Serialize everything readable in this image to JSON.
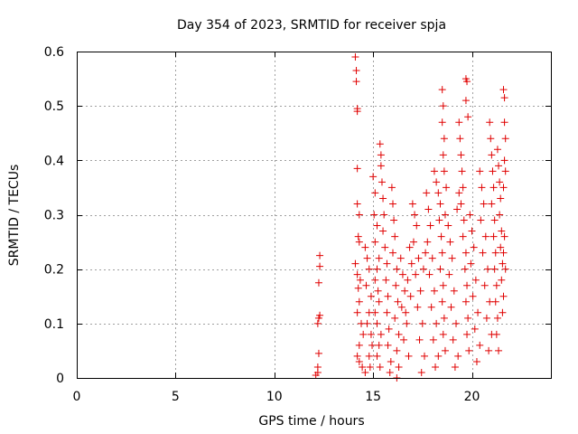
{
  "chart_data": {
    "type": "scatter",
    "title": "Day 354 of 2023, SRMTID for receiver spja",
    "xlabel": "GPS time / hours",
    "ylabel": "SRMTID / TECUs",
    "xlim": [
      0,
      24
    ],
    "ylim": [
      0,
      0.6
    ],
    "xticks": [
      0,
      5,
      10,
      15,
      20
    ],
    "xtick_labels": [
      "0",
      "5",
      "10",
      "15",
      "20"
    ],
    "yticks": [
      0,
      0.1,
      0.2,
      0.3,
      0.4,
      0.5,
      0.6
    ],
    "ytick_labels": [
      "0",
      "0.1",
      "0.2",
      "0.3",
      "0.4",
      "0.5",
      "0.6"
    ],
    "grid": true,
    "marker": "+",
    "marker_color": "#e00000",
    "series": [
      {
        "name": "SRMTID",
        "points": [
          [
            12.1,
            0.005
          ],
          [
            12.2,
            0.01
          ],
          [
            12.2,
            0.02
          ],
          [
            12.25,
            0.045
          ],
          [
            12.2,
            0.1
          ],
          [
            12.25,
            0.11
          ],
          [
            12.3,
            0.115
          ],
          [
            12.25,
            0.175
          ],
          [
            12.3,
            0.205
          ],
          [
            12.3,
            0.225
          ],
          [
            14.1,
            0.59
          ],
          [
            14.15,
            0.565
          ],
          [
            14.15,
            0.545
          ],
          [
            14.2,
            0.495
          ],
          [
            14.2,
            0.49
          ],
          [
            14.2,
            0.385
          ],
          [
            14.2,
            0.32
          ],
          [
            14.3,
            0.3
          ],
          [
            14.25,
            0.26
          ],
          [
            14.3,
            0.25
          ],
          [
            14.1,
            0.21
          ],
          [
            14.2,
            0.19
          ],
          [
            14.35,
            0.18
          ],
          [
            14.25,
            0.165
          ],
          [
            14.3,
            0.14
          ],
          [
            14.2,
            0.12
          ],
          [
            14.4,
            0.1
          ],
          [
            14.5,
            0.08
          ],
          [
            14.3,
            0.06
          ],
          [
            14.2,
            0.04
          ],
          [
            14.3,
            0.03
          ],
          [
            14.45,
            0.02
          ],
          [
            14.6,
            0.01
          ],
          [
            14.6,
            0.24
          ],
          [
            14.7,
            0.22
          ],
          [
            14.8,
            0.2
          ],
          [
            14.65,
            0.17
          ],
          [
            14.9,
            0.15
          ],
          [
            14.8,
            0.12
          ],
          [
            14.7,
            0.1
          ],
          [
            14.9,
            0.08
          ],
          [
            14.95,
            0.06
          ],
          [
            14.8,
            0.04
          ],
          [
            14.85,
            0.02
          ],
          [
            15.0,
            0.37
          ],
          [
            15.1,
            0.34
          ],
          [
            15.05,
            0.3
          ],
          [
            15.2,
            0.28
          ],
          [
            15.1,
            0.25
          ],
          [
            15.3,
            0.22
          ],
          [
            15.2,
            0.2
          ],
          [
            15.1,
            0.18
          ],
          [
            15.25,
            0.16
          ],
          [
            15.3,
            0.14
          ],
          [
            15.1,
            0.12
          ],
          [
            15.2,
            0.1
          ],
          [
            15.4,
            0.08
          ],
          [
            15.3,
            0.06
          ],
          [
            15.2,
            0.04
          ],
          [
            15.35,
            0.02
          ],
          [
            15.35,
            0.43
          ],
          [
            15.4,
            0.41
          ],
          [
            15.4,
            0.39
          ],
          [
            15.45,
            0.36
          ],
          [
            15.5,
            0.33
          ],
          [
            15.55,
            0.3
          ],
          [
            15.5,
            0.27
          ],
          [
            15.6,
            0.24
          ],
          [
            15.7,
            0.21
          ],
          [
            15.65,
            0.18
          ],
          [
            15.75,
            0.15
          ],
          [
            15.7,
            0.12
          ],
          [
            15.8,
            0.09
          ],
          [
            15.75,
            0.06
          ],
          [
            15.9,
            0.03
          ],
          [
            15.85,
            0.01
          ],
          [
            15.95,
            0.35
          ],
          [
            16.0,
            0.32
          ],
          [
            16.05,
            0.29
          ],
          [
            16.1,
            0.26
          ],
          [
            16.0,
            0.23
          ],
          [
            16.2,
            0.2
          ],
          [
            16.15,
            0.17
          ],
          [
            16.25,
            0.14
          ],
          [
            16.1,
            0.11
          ],
          [
            16.3,
            0.08
          ],
          [
            16.2,
            0.05
          ],
          [
            16.3,
            0.02
          ],
          [
            16.2,
            0.0
          ],
          [
            16.4,
            0.22
          ],
          [
            16.5,
            0.19
          ],
          [
            16.6,
            0.16
          ],
          [
            16.45,
            0.13
          ],
          [
            16.7,
            0.1
          ],
          [
            16.55,
            0.07
          ],
          [
            16.8,
            0.04
          ],
          [
            16.65,
            0.12
          ],
          [
            16.9,
            0.15
          ],
          [
            16.75,
            0.18
          ],
          [
            16.95,
            0.21
          ],
          [
            16.85,
            0.24
          ],
          [
            17.0,
            0.32
          ],
          [
            17.1,
            0.3
          ],
          [
            17.2,
            0.28
          ],
          [
            17.05,
            0.25
          ],
          [
            17.3,
            0.22
          ],
          [
            17.15,
            0.19
          ],
          [
            17.4,
            0.16
          ],
          [
            17.25,
            0.13
          ],
          [
            17.5,
            0.1
          ],
          [
            17.35,
            0.07
          ],
          [
            17.6,
            0.04
          ],
          [
            17.45,
            0.01
          ],
          [
            17.55,
            0.2
          ],
          [
            17.65,
            0.23
          ],
          [
            17.7,
            0.34
          ],
          [
            17.8,
            0.31
          ],
          [
            17.9,
            0.28
          ],
          [
            17.75,
            0.25
          ],
          [
            18.0,
            0.22
          ],
          [
            17.85,
            0.19
          ],
          [
            18.1,
            0.16
          ],
          [
            17.95,
            0.13
          ],
          [
            18.2,
            0.1
          ],
          [
            18.05,
            0.07
          ],
          [
            18.3,
            0.04
          ],
          [
            18.15,
            0.02
          ],
          [
            18.1,
            0.38
          ],
          [
            18.2,
            0.36
          ],
          [
            18.3,
            0.34
          ],
          [
            18.4,
            0.32
          ],
          [
            18.35,
            0.29
          ],
          [
            18.45,
            0.26
          ],
          [
            18.5,
            0.23
          ],
          [
            18.4,
            0.2
          ],
          [
            18.55,
            0.17
          ],
          [
            18.5,
            0.14
          ],
          [
            18.6,
            0.11
          ],
          [
            18.55,
            0.08
          ],
          [
            18.65,
            0.05
          ],
          [
            18.5,
            0.53
          ],
          [
            18.55,
            0.5
          ],
          [
            18.5,
            0.47
          ],
          [
            18.6,
            0.44
          ],
          [
            18.55,
            0.41
          ],
          [
            18.6,
            0.38
          ],
          [
            18.7,
            0.35
          ],
          [
            18.65,
            0.3
          ],
          [
            18.8,
            0.28
          ],
          [
            18.9,
            0.25
          ],
          [
            19.0,
            0.22
          ],
          [
            18.85,
            0.19
          ],
          [
            19.1,
            0.16
          ],
          [
            18.95,
            0.13
          ],
          [
            19.2,
            0.1
          ],
          [
            19.05,
            0.07
          ],
          [
            19.3,
            0.04
          ],
          [
            19.15,
            0.02
          ],
          [
            19.25,
            0.31
          ],
          [
            19.35,
            0.34
          ],
          [
            19.35,
            0.47
          ],
          [
            19.4,
            0.44
          ],
          [
            19.45,
            0.41
          ],
          [
            19.5,
            0.38
          ],
          [
            19.55,
            0.35
          ],
          [
            19.45,
            0.32
          ],
          [
            19.6,
            0.29
          ],
          [
            19.55,
            0.26
          ],
          [
            19.7,
            0.23
          ],
          [
            19.65,
            0.2
          ],
          [
            19.75,
            0.17
          ],
          [
            19.7,
            0.14
          ],
          [
            19.8,
            0.11
          ],
          [
            19.75,
            0.08
          ],
          [
            19.85,
            0.05
          ],
          [
            19.7,
            0.55
          ],
          [
            19.75,
            0.545
          ],
          [
            19.7,
            0.51
          ],
          [
            19.8,
            0.48
          ],
          [
            19.9,
            0.3
          ],
          [
            20.0,
            0.27
          ],
          [
            20.1,
            0.24
          ],
          [
            19.95,
            0.21
          ],
          [
            20.2,
            0.18
          ],
          [
            20.05,
            0.15
          ],
          [
            20.3,
            0.12
          ],
          [
            20.15,
            0.09
          ],
          [
            20.4,
            0.06
          ],
          [
            20.25,
            0.03
          ],
          [
            20.4,
            0.38
          ],
          [
            20.5,
            0.35
          ],
          [
            20.6,
            0.32
          ],
          [
            20.45,
            0.29
          ],
          [
            20.7,
            0.26
          ],
          [
            20.55,
            0.23
          ],
          [
            20.8,
            0.2
          ],
          [
            20.65,
            0.17
          ],
          [
            20.9,
            0.14
          ],
          [
            20.75,
            0.11
          ],
          [
            21.0,
            0.08
          ],
          [
            20.85,
            0.05
          ],
          [
            20.9,
            0.47
          ],
          [
            20.95,
            0.44
          ],
          [
            21.0,
            0.41
          ],
          [
            21.05,
            0.38
          ],
          [
            21.1,
            0.35
          ],
          [
            21.0,
            0.32
          ],
          [
            21.15,
            0.29
          ],
          [
            21.1,
            0.26
          ],
          [
            21.2,
            0.23
          ],
          [
            21.15,
            0.2
          ],
          [
            21.25,
            0.17
          ],
          [
            21.2,
            0.14
          ],
          [
            21.3,
            0.11
          ],
          [
            21.25,
            0.08
          ],
          [
            21.35,
            0.05
          ],
          [
            21.3,
            0.42
          ],
          [
            21.35,
            0.39
          ],
          [
            21.4,
            0.36
          ],
          [
            21.45,
            0.33
          ],
          [
            21.4,
            0.3
          ],
          [
            21.5,
            0.27
          ],
          [
            21.45,
            0.24
          ],
          [
            21.55,
            0.21
          ],
          [
            21.5,
            0.18
          ],
          [
            21.6,
            0.15
          ],
          [
            21.55,
            0.12
          ],
          [
            21.6,
            0.53
          ],
          [
            21.65,
            0.515
          ],
          [
            21.65,
            0.47
          ],
          [
            21.7,
            0.44
          ],
          [
            21.65,
            0.4
          ],
          [
            21.7,
            0.38
          ],
          [
            21.6,
            0.35
          ],
          [
            21.65,
            0.26
          ],
          [
            21.6,
            0.23
          ],
          [
            21.7,
            0.2
          ]
        ]
      }
    ]
  }
}
